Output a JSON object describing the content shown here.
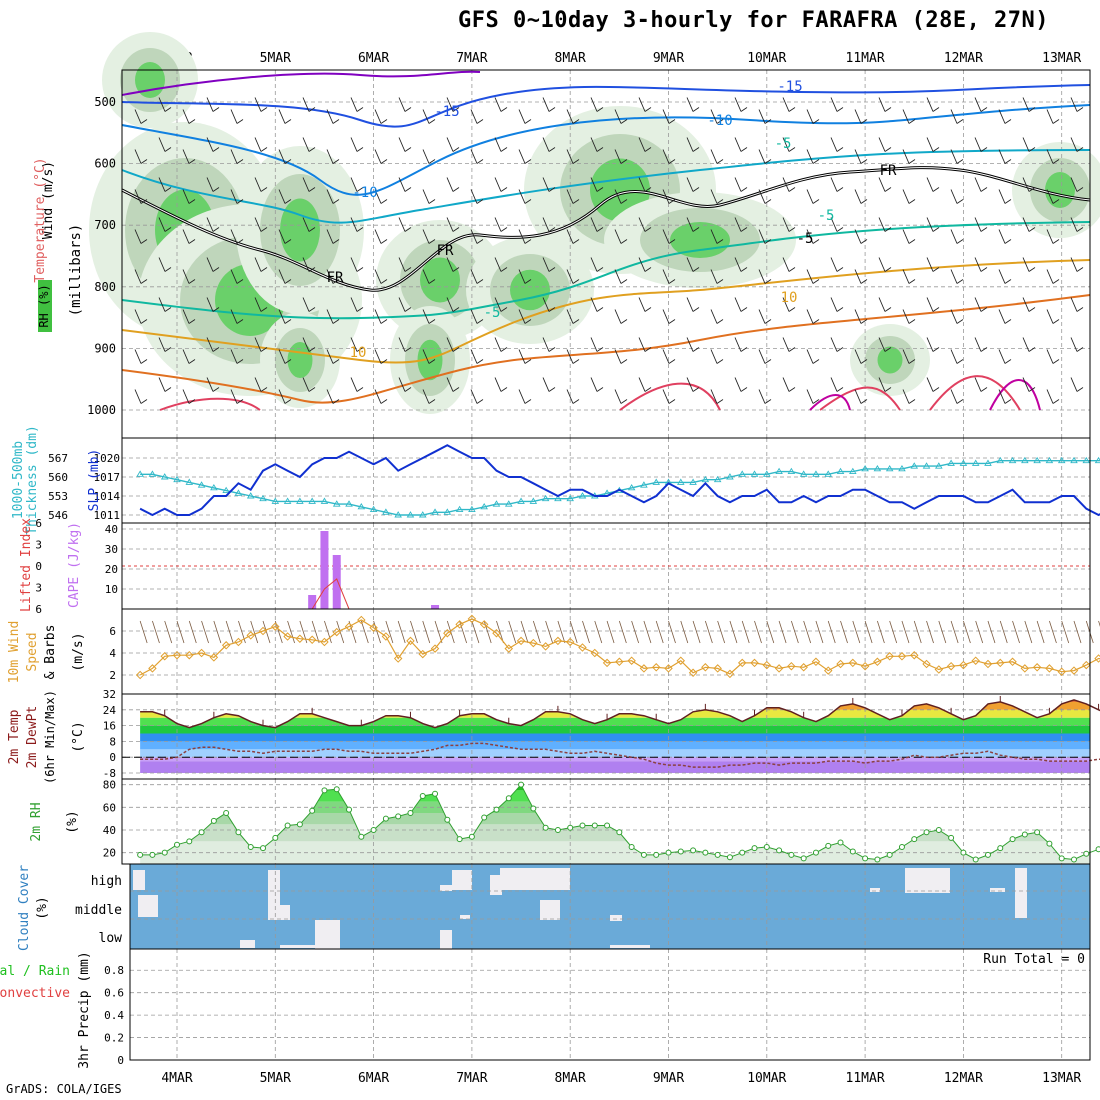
{
  "title": "GFS 0~10day 3-hourly for FARAFRA (28E, 27N)",
  "footer": "GrADS: COLA/IGES",
  "dates": [
    "4MAR",
    "5MAR",
    "6MAR",
    "7MAR",
    "8MAR",
    "9MAR",
    "10MAR",
    "11MAR",
    "12MAR",
    "13MAR"
  ],
  "colors": {
    "grid": "#999999",
    "axis": "#000000",
    "slp": "#1030d0",
    "thick": "#30b8c8",
    "cape": "#c070f0",
    "li": "#e04040",
    "wind": "#e0a030",
    "cloud": "#6aaad8",
    "rh": "#30a030",
    "dew": "#8b4040"
  },
  "chart_data": [
    {
      "type": "heatmap",
      "name": "upper_air",
      "ylabel_parts": [
        "RH (%)",
        "Temperature (°C)",
        "Wind (m/s)"
      ],
      "yaxis_caption": "(millibars)",
      "y_ticks": [
        500,
        600,
        700,
        800,
        900,
        1000
      ],
      "contour_labels": [
        "-15",
        "-15",
        "-10",
        "-10",
        "-5",
        "-5",
        "-5",
        "10",
        "10",
        "FR",
        "FR",
        "FR",
        "-5"
      ]
    },
    {
      "type": "line",
      "name": "slp_thickness",
      "ylabel_left": "1000-500mb Thickness (dm)",
      "ylabel_right": "SLP (mb)",
      "thick_ticks": [
        546,
        553,
        560,
        567
      ],
      "slp_ticks": [
        1011,
        1014,
        1017,
        1020
      ],
      "slp": [
        1012,
        1011,
        1012,
        1011,
        1011,
        1012,
        1014,
        1014,
        1016,
        1015,
        1018,
        1019,
        1018,
        1017,
        1019,
        1020,
        1020,
        1021,
        1020,
        1019,
        1020,
        1018,
        1019,
        1020,
        1021,
        1022,
        1021,
        1020,
        1020,
        1018,
        1017,
        1017,
        1016,
        1015,
        1014,
        1015,
        1015,
        1014,
        1014,
        1015,
        1014,
        1013,
        1014,
        1016,
        1015,
        1014,
        1016,
        1014,
        1013,
        1014,
        1014,
        1015,
        1013,
        1013,
        1014,
        1013,
        1014,
        1014,
        1015,
        1015,
        1014,
        1013,
        1013,
        1012,
        1013,
        1014,
        1014,
        1014,
        1013,
        1013,
        1014,
        1015,
        1013,
        1013,
        1013,
        1014,
        1014,
        1012,
        1011,
        1012,
        1012,
        1011,
        1013
      ],
      "thickness": [
        561,
        561,
        560,
        559,
        558,
        557,
        556,
        555,
        554,
        553,
        552,
        551,
        551,
        551,
        551,
        551,
        550,
        550,
        549,
        548,
        547,
        546,
        546,
        546,
        547,
        547,
        548,
        548,
        549,
        550,
        550,
        551,
        551,
        552,
        552,
        552,
        553,
        553,
        554,
        555,
        556,
        557,
        558,
        558,
        558,
        558,
        559,
        559,
        560,
        561,
        561,
        561,
        562,
        562,
        561,
        561,
        561,
        562,
        562,
        563,
        563,
        563,
        563,
        564,
        564,
        564,
        565,
        565,
        565,
        565,
        566,
        566,
        566,
        566,
        566,
        566,
        566,
        566,
        566,
        566,
        566,
        566,
        566
      ]
    },
    {
      "type": "bar",
      "name": "cape_li",
      "ylabel_left": "Lifted Index",
      "ylabel_right": "CAPE (J/kg)",
      "li_ticks": [
        -6,
        -3,
        0,
        3,
        6
      ],
      "cape_ticks": [
        10,
        20,
        30,
        40
      ],
      "cape_bars": [
        {
          "t": 14,
          "v": 7
        },
        {
          "t": 15,
          "v": 39
        },
        {
          "t": 16,
          "v": 27
        },
        {
          "t": 24,
          "v": 2
        }
      ]
    },
    {
      "type": "line",
      "name": "wind10m",
      "ylabel": "10m Wind Speed & Barbs (m/s)",
      "y_ticks": [
        2,
        4,
        6
      ],
      "values": [
        2.0,
        2.6,
        3.7,
        3.8,
        3.8,
        4.0,
        3.6,
        4.7,
        5.0,
        5.6,
        6.0,
        6.4,
        5.5,
        5.3,
        5.2,
        5.0,
        5.9,
        6.4,
        7.0,
        6.3,
        5.5,
        3.5,
        5.1,
        3.9,
        4.4,
        5.8,
        6.6,
        7.1,
        6.6,
        5.8,
        4.4,
        5.1,
        4.9,
        4.6,
        5.1,
        5.0,
        4.5,
        4.0,
        3.1,
        3.2,
        3.3,
        2.6,
        2.7,
        2.6,
        3.3,
        2.2,
        2.7,
        2.6,
        2.1,
        3.1,
        3.1,
        2.9,
        2.6,
        2.8,
        2.7,
        3.2,
        2.4,
        3.0,
        3.1,
        2.8,
        3.2,
        3.7,
        3.7,
        3.8,
        3.0,
        2.5,
        2.8,
        2.9,
        3.3,
        3.0,
        3.1,
        3.2,
        2.6,
        2.7,
        2.6,
        2.3,
        2.4,
        2.9,
        3.5,
        3.3,
        2.8,
        1.6,
        1.4,
        1.8
      ]
    },
    {
      "type": "area",
      "name": "temp_dewpoint",
      "ylabel": "2m Temp 2m DewPt (6hr Min/Max) (°C)",
      "y_ticks": [
        -8,
        0,
        8,
        16,
        24,
        32
      ],
      "temp": [
        23,
        23,
        21,
        17,
        15,
        17,
        20,
        22,
        21,
        18,
        16,
        15,
        18,
        22,
        22,
        20,
        18,
        16,
        16,
        18,
        21,
        21,
        20,
        17,
        15,
        17,
        21,
        22,
        22,
        19,
        17,
        16,
        19,
        23,
        23,
        22,
        19,
        17,
        19,
        22,
        22,
        21,
        19,
        17,
        19,
        23,
        24,
        23,
        21,
        18,
        21,
        25,
        25,
        23,
        20,
        18,
        21,
        26,
        27,
        25,
        22,
        19,
        21,
        26,
        27,
        25,
        22,
        19,
        21,
        27,
        28,
        26,
        23,
        20,
        22,
        27,
        29,
        27,
        24,
        21,
        22
      ],
      "dewpoint": [
        -1,
        -1,
        -1,
        0,
        4,
        5,
        5,
        4,
        3,
        3,
        2,
        3,
        3,
        3,
        3,
        4,
        4,
        3,
        3,
        2,
        2,
        2,
        2,
        3,
        4,
        6,
        6,
        7,
        7,
        6,
        5,
        4,
        4,
        4,
        3,
        2,
        2,
        3,
        2,
        1,
        0,
        -1,
        -3,
        -4,
        -4,
        -5,
        -5,
        -5,
        -4,
        -4,
        -3,
        -3,
        -4,
        -3,
        -3,
        -3,
        -2,
        -2,
        -2,
        -3,
        -2,
        -2,
        -1,
        1,
        0,
        0,
        1,
        2,
        2,
        3,
        1,
        0,
        -1,
        -1,
        -2,
        -2,
        -2,
        -2,
        -1,
        -1,
        -1
      ]
    },
    {
      "type": "area",
      "name": "rh2m",
      "ylabel": "2m RH (%)",
      "y_ticks": [
        20,
        40,
        60,
        80
      ],
      "values": [
        18,
        18,
        20,
        27,
        30,
        38,
        48,
        55,
        38,
        25,
        24,
        33,
        44,
        45,
        57,
        75,
        76,
        58,
        34,
        40,
        50,
        52,
        55,
        70,
        72,
        49,
        32,
        34,
        51,
        58,
        68,
        80,
        59,
        42,
        40,
        42,
        44,
        44,
        44,
        38,
        25,
        18,
        18,
        20,
        21,
        22,
        20,
        18,
        16,
        20,
        24,
        25,
        22,
        18,
        15,
        20,
        26,
        29,
        21,
        15,
        14,
        18,
        25,
        32,
        38,
        40,
        33,
        20,
        14,
        18,
        24,
        32,
        36,
        38,
        28,
        15,
        14,
        19,
        23,
        26,
        26,
        22
      ]
    },
    {
      "type": "heatmap",
      "name": "cloud_cover",
      "ylabel": "Cloud Cover (%)",
      "levels": [
        "high",
        "middle",
        "low"
      ]
    },
    {
      "type": "bar",
      "name": "precip",
      "ylabel_left": "Total / Rain",
      "ylabel_right": "Convective",
      "ylabel_axis": "3hr Precip (mm)",
      "y_ticks": [
        "0",
        "0.2",
        "0.4",
        "0.6",
        "0.8"
      ],
      "values": [],
      "annotation": "Run Total = 0"
    }
  ]
}
